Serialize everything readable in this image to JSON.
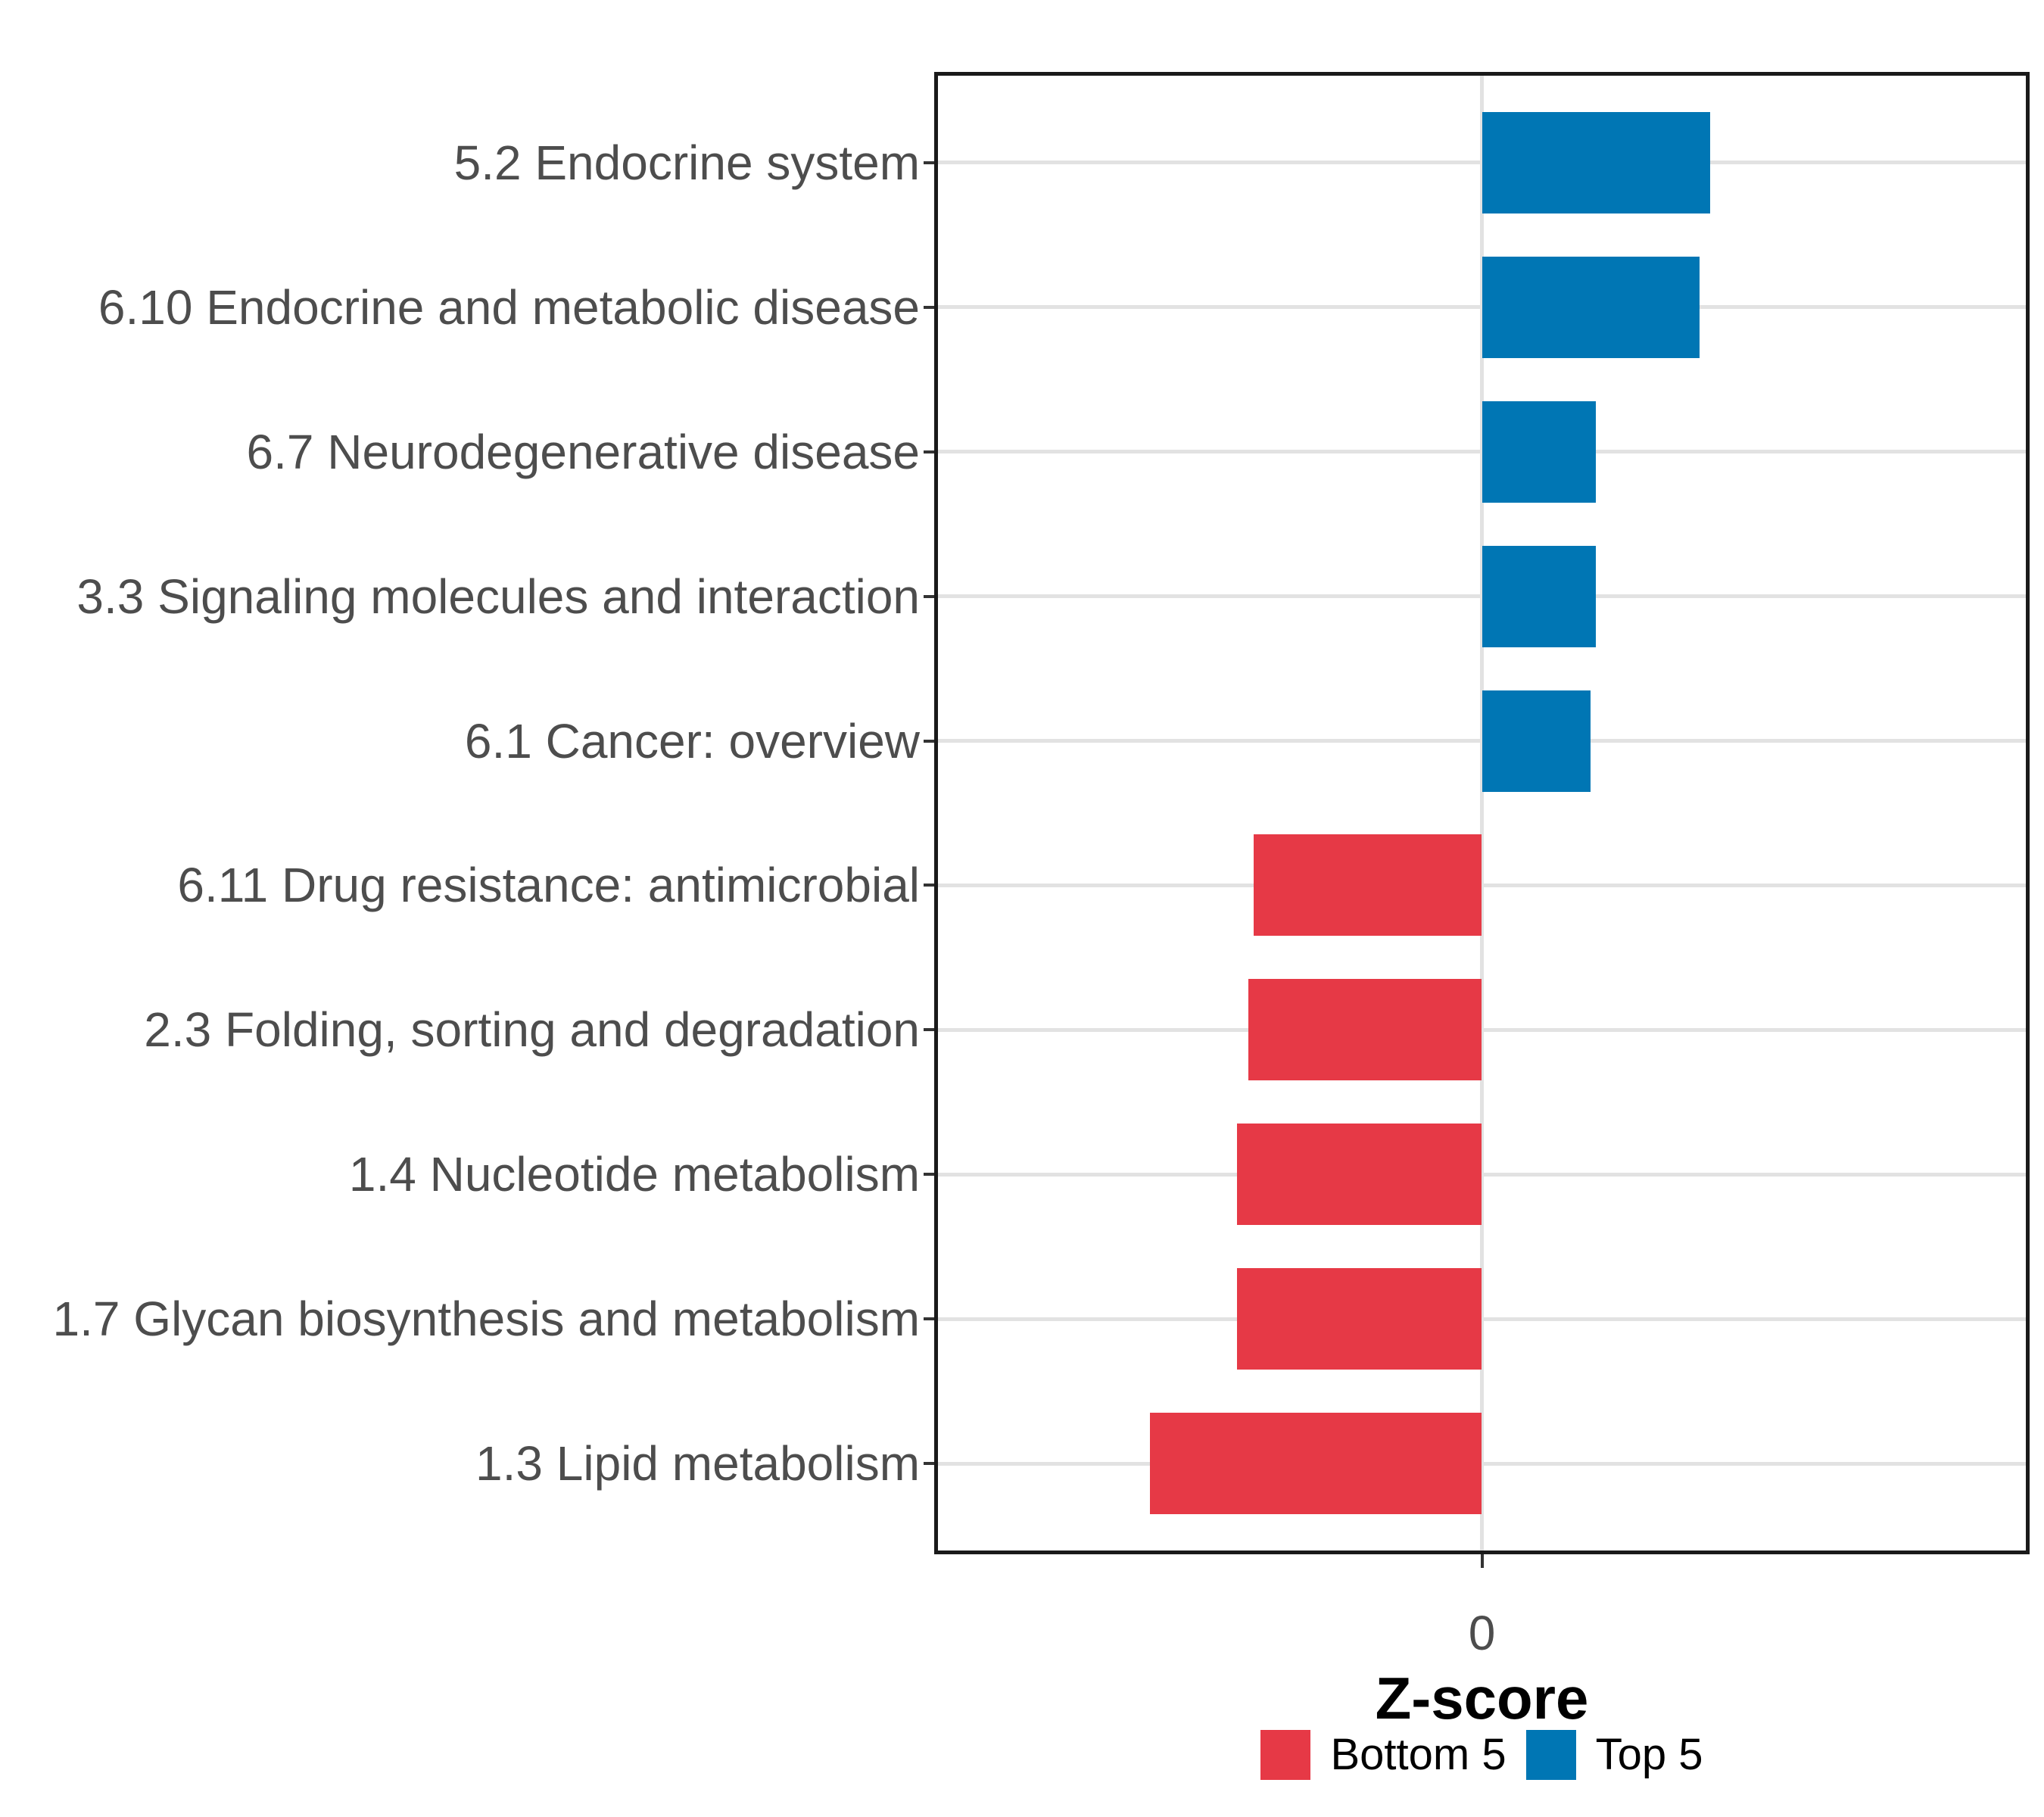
{
  "chart_data": {
    "type": "bar",
    "orientation": "horizontal",
    "title": "",
    "xlabel": "Z-score",
    "ylabel": "",
    "x_tick_labels": [
      "0"
    ],
    "xlim": [
      -1,
      1
    ],
    "grid": {
      "horizontal_major": true,
      "vertical_zero_line": true,
      "color": "#e2e2e2"
    },
    "legend_position": "bottom",
    "categories": [
      "5.2 Endocrine system",
      "6.10 Endocrine and metabolic disease",
      "6.7 Neurodegenerative disease",
      "3.3 Signaling molecules and interaction",
      "6.1 Cancer: overview",
      "6.11 Drug resistance: antimicrobial",
      "2.3 Folding, sorting and degradation",
      "1.4 Nucleotide metabolism",
      "1.7 Glycan biosynthesis and metabolism",
      "1.3 Lipid metabolism"
    ],
    "values": [
      0.42,
      0.4,
      0.21,
      0.21,
      0.2,
      -0.42,
      -0.43,
      -0.45,
      -0.45,
      -0.61
    ],
    "groups": [
      "Top 5",
      "Top 5",
      "Top 5",
      "Top 5",
      "Top 5",
      "Bottom 5",
      "Bottom 5",
      "Bottom 5",
      "Bottom 5",
      "Bottom 5"
    ],
    "colors": {
      "Top 5": "#0076b4",
      "Bottom 5": "#e63946"
    },
    "legend": {
      "items": [
        {
          "label": "Bottom 5",
          "swatch_color": "#e63946"
        },
        {
          "label": "Top 5",
          "swatch_color": "#0076b4"
        }
      ]
    },
    "style": {
      "panel_border_color": "#1a1a1a",
      "axis_text_color": "#4d4d4d",
      "axis_title_color": "#000000",
      "background": "#ffffff"
    }
  }
}
